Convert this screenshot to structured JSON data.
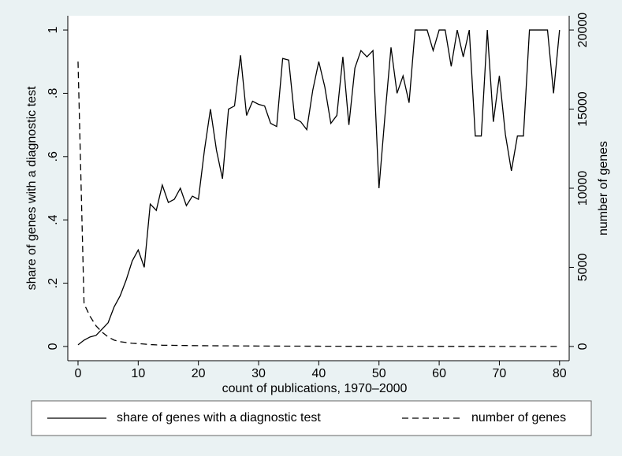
{
  "chart_data": {
    "type": "line",
    "xlabel": "count of publications, 1970–2000",
    "ylabel": "share of genes with a diagnostic test",
    "y2label": "number of genes",
    "x": [
      0,
      1,
      2,
      3,
      4,
      5,
      6,
      7,
      8,
      9,
      10,
      11,
      12,
      13,
      14,
      15,
      16,
      17,
      18,
      19,
      20,
      21,
      22,
      23,
      24,
      25,
      26,
      27,
      28,
      29,
      30,
      31,
      32,
      33,
      34,
      35,
      36,
      37,
      38,
      39,
      40,
      41,
      42,
      43,
      44,
      45,
      46,
      47,
      48,
      49,
      50,
      51,
      52,
      53,
      54,
      55,
      56,
      57,
      58,
      59,
      60,
      61,
      62,
      63,
      64,
      65,
      66,
      67,
      68,
      69,
      70,
      71,
      72,
      73,
      74,
      75,
      76,
      77,
      78,
      79,
      80
    ],
    "series": [
      {
        "name": "share of genes with a diagnostic test",
        "color": "#000000",
        "dash": "solid",
        "values": [
          0.005,
          0.02,
          0.03,
          0.035,
          0.055,
          0.075,
          0.125,
          0.16,
          0.21,
          0.27,
          0.305,
          0.25,
          0.45,
          0.43,
          0.51,
          0.455,
          0.465,
          0.5,
          0.445,
          0.475,
          0.465,
          0.62,
          0.75,
          0.62,
          0.53,
          0.75,
          0.76,
          0.92,
          0.73,
          0.775,
          0.765,
          0.76,
          0.705,
          0.695,
          0.91,
          0.905,
          0.72,
          0.71,
          0.685,
          0.81,
          0.9,
          0.82,
          0.705,
          0.73,
          0.915,
          0.7,
          0.88,
          0.935,
          0.915,
          0.935,
          0.5,
          0.73,
          0.945,
          0.8,
          0.855,
          0.77,
          1,
          1,
          1,
          0.935,
          1,
          1,
          0.885,
          1,
          0.915,
          1,
          0.665,
          0.665,
          1,
          0.71,
          0.855,
          0.67,
          0.555,
          0.665,
          0.665,
          1,
          1,
          1,
          1,
          0.8,
          1
        ]
      },
      {
        "name": "number of genes",
        "color": "#000000",
        "dash": "dashed",
        "axis": "y2",
        "values": [
          18000,
          2700,
          1900,
          1300,
          900,
          600,
          400,
          300,
          250,
          200,
          180,
          150,
          120,
          100,
          80,
          75,
          70,
          65,
          60,
          55,
          50,
          48,
          45,
          42,
          40,
          38,
          36,
          34,
          32,
          30,
          28,
          26,
          25,
          24,
          23,
          22,
          21,
          20,
          19,
          18,
          17,
          16,
          15,
          14,
          13,
          12,
          12,
          11,
          11,
          10,
          10,
          9,
          9,
          8,
          8,
          8,
          7,
          7,
          7,
          6,
          6,
          6,
          6,
          5,
          5,
          5,
          5,
          5,
          4,
          4,
          4,
          4,
          4,
          3,
          3,
          3,
          3,
          3,
          2,
          2,
          2
        ]
      }
    ],
    "xlim": [
      -1.7,
      81.6
    ],
    "xticks": [
      0,
      10,
      20,
      30,
      40,
      50,
      60,
      70,
      80
    ],
    "ylim": [
      -0.045,
      1.045
    ],
    "yticks": [
      0,
      {
        "value": 0.2,
        "label": ".2"
      },
      {
        "value": 0.4,
        "label": ".4"
      },
      {
        "value": 0.6,
        "label": ".6"
      },
      {
        "value": 0.8,
        "label": ".8"
      },
      1
    ],
    "y2lim": [
      -900,
      20900
    ],
    "y2ticks": [
      0,
      5000,
      10000,
      15000,
      20000
    ],
    "grid": false,
    "legend": "bottom"
  }
}
